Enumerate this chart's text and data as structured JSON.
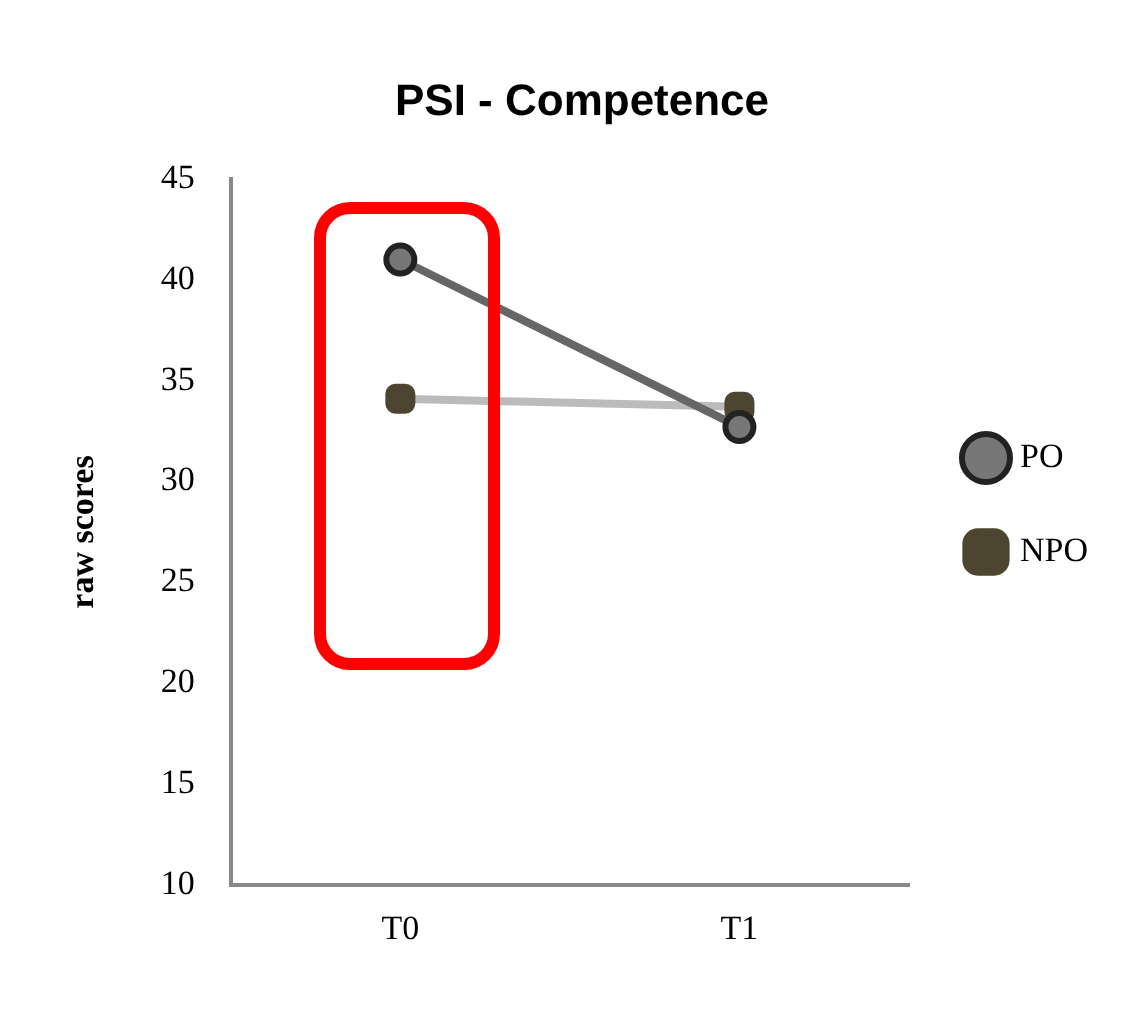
{
  "chart_data": {
    "type": "line",
    "title": "PSI - Competence",
    "ylabel": "raw scores",
    "categories": [
      "T0",
      "T1"
    ],
    "series": [
      {
        "name": "PO",
        "color": "#666666",
        "values": [
          41,
          32.7
        ],
        "marker": "circle"
      },
      {
        "name": "NPO",
        "color": "#bbbbbb",
        "values": [
          34.1,
          33.7
        ],
        "marker": "square"
      }
    ],
    "ylim": [
      10,
      45
    ],
    "yticks": [
      10,
      15,
      20,
      25,
      30,
      35,
      40,
      45
    ],
    "grid": false,
    "legend": "right"
  }
}
